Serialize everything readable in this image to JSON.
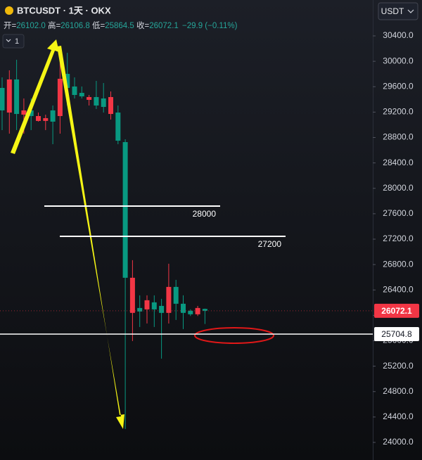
{
  "chart_data": {
    "type": "candlestick",
    "title": "BTCUSDT · 1天 · OKX",
    "currency_button": "USDT",
    "interval_badge": "1",
    "ohlc_legend": [
      {
        "label": "开=",
        "value": "26102.0"
      },
      {
        "label": "高=",
        "value": "26106.8"
      },
      {
        "label": "低=",
        "value": "25864.5"
      },
      {
        "label": "收=",
        "value": "26072.1"
      }
    ],
    "change": "−29.9 (−0.11%)",
    "categories": [
      null,
      null,
      null,
      null,
      null,
      null,
      null,
      null,
      null,
      null,
      null,
      null,
      null,
      null,
      null,
      null,
      null,
      null,
      null,
      null,
      null,
      null,
      null,
      null,
      null,
      null,
      null,
      null,
      null
    ],
    "series": [
      {
        "up_color": "#f23645",
        "down_color": "#089981",
        "open": [
          29581,
          29193,
          29714,
          29160,
          29227,
          29061,
          29061,
          29227,
          29138,
          29802,
          29603,
          29503,
          29393,
          29437,
          29415,
          29171,
          29193,
          28728,
          26039,
          26116,
          26094,
          26205,
          26149,
          26039,
          26448,
          26183,
          26072,
          26017,
          26102.0
        ],
        "high": [
          29747,
          29858,
          30024,
          29415,
          29415,
          29193,
          29160,
          29304,
          30190,
          30134,
          29747,
          29603,
          29470,
          29692,
          29658,
          29525,
          29304,
          28773,
          26869,
          26315,
          26315,
          26315,
          26260,
          26813,
          26559,
          26315,
          26094,
          26149,
          26106.8
        ],
        "low": [
          28917,
          28861,
          28917,
          28861,
          28917,
          29050,
          28917,
          28695,
          28861,
          29304,
          29415,
          29415,
          29304,
          29249,
          29193,
          29083,
          28695,
          24212,
          25596,
          25817,
          25872,
          25817,
          25319,
          25872,
          25928,
          25784,
          25990,
          25990,
          25864.5
        ],
        "close": [
          29227,
          29714,
          29171,
          29227,
          29138,
          29138,
          29105,
          29050,
          29725,
          29581,
          29470,
          29448,
          29437,
          29304,
          29282,
          29437,
          28750,
          26592,
          26592,
          26061,
          26238,
          26094,
          26039,
          26448,
          26183,
          26039,
          26017,
          26116,
          26072.1
        ]
      }
    ],
    "ylim": [
      23723,
      30965
    ],
    "yticks": [
      {
        "value": 30400,
        "label": "30400.0"
      },
      {
        "value": 30000,
        "label": "30000.0"
      },
      {
        "value": 29600,
        "label": "29600.0"
      },
      {
        "value": 29200,
        "label": "29200.0"
      },
      {
        "value": 28800,
        "label": "28800.0"
      },
      {
        "value": 28400,
        "label": "28400.0"
      },
      {
        "value": 28000,
        "label": "28000.0"
      },
      {
        "value": 27600,
        "label": "27600.0"
      },
      {
        "value": 27200,
        "label": "27200.0"
      },
      {
        "value": 26800,
        "label": "26800.0"
      },
      {
        "value": 26400,
        "label": "26400.0"
      },
      {
        "value": 26000,
        "label": "26000.0"
      },
      {
        "value": 25600,
        "label": "25600.0"
      },
      {
        "value": 25200,
        "label": "25200.0"
      },
      {
        "value": 24800,
        "label": "24800.0"
      },
      {
        "value": 24400,
        "label": "24400.0"
      },
      {
        "value": 24000,
        "label": "24000.0"
      }
    ],
    "drawn_levels": [
      {
        "price": 27720,
        "note": "28000"
      },
      {
        "price": 27245,
        "note": "27200"
      }
    ],
    "horizontal_line": {
      "value": 25704.8,
      "label": "25704.8"
    },
    "last_price": {
      "value": 26072.1,
      "label": "26072.1"
    }
  }
}
